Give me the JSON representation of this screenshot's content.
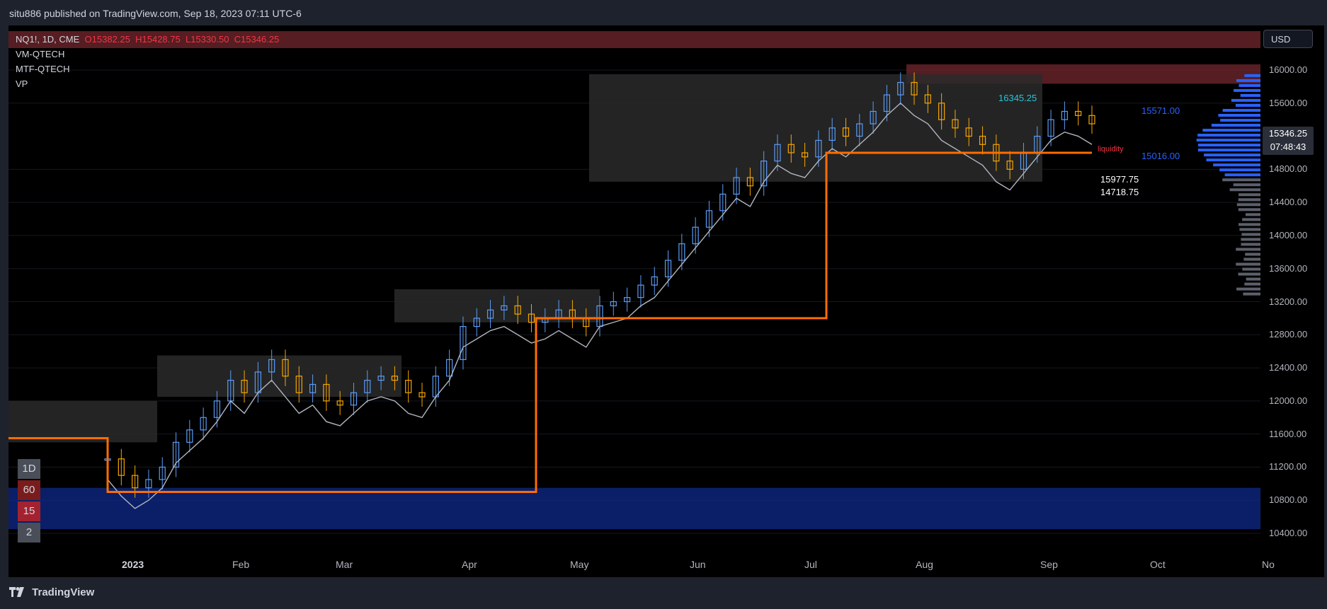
{
  "header": {
    "published": "situ886 published on TradingView.com, Sep 18, 2023 07:11 UTC-6"
  },
  "legend": {
    "symbol": "NQ1!, 1D, CME",
    "open": "O15382.25",
    "high": "H15428.75",
    "low": "L15330.50",
    "close": "C15346.25",
    "indicators": [
      "VM-QTECH",
      "MTF-QTECH",
      "VP"
    ]
  },
  "currency": "USD",
  "last_price": {
    "value": "15346.25",
    "countdown": "07:48:43"
  },
  "timeframes": [
    {
      "label": "1D",
      "color": "#4a4e58"
    },
    {
      "label": "60",
      "color": "#7a1c1c"
    },
    {
      "label": "15",
      "color": "#a3222f"
    },
    {
      "label": "2",
      "color": "#4a4e58"
    }
  ],
  "annotations": {
    "level_1": "16345.25",
    "level_2": "15571.00",
    "level_3": "15016.00",
    "liquidity": "liquidity",
    "level_4": "15977.75",
    "level_5": "14718.75"
  },
  "footer": {
    "brand": "TradingView"
  },
  "colors": {
    "up": "#5b9cf6",
    "down": "#f7a600",
    "poc_line": "#ff6d00",
    "vwap": "#b2b5be",
    "fill": "#0d1a7a",
    "resistance_zone": "#7a2a30",
    "buy_marker": "#00e676",
    "sell_marker": "#ff1744"
  },
  "chart_data": {
    "type": "candlestick",
    "symbol": "NQ1!",
    "interval": "1D",
    "y_axis": {
      "ticks": [
        16000,
        15600,
        14800,
        14400,
        14000,
        13600,
        13200,
        12800,
        12400,
        12000,
        11600,
        11200,
        10800,
        10400
      ],
      "tick_labels": [
        "16000.00",
        "15600.00",
        "14800.00",
        "14400.00",
        "14000.00",
        "13600.00",
        "13200.00",
        "12800.00",
        "12400.00",
        "12000.00",
        "11600.00",
        "11200.00",
        "10800.00",
        "10400.00"
      ],
      "range": [
        10000,
        16400
      ]
    },
    "x_axis": {
      "labels": [
        "2023",
        "Feb",
        "Mar",
        "Apr",
        "May",
        "Jun",
        "Jul",
        "Aug",
        "Sep",
        "Oct",
        "No"
      ]
    },
    "close_approx": [
      11300,
      11100,
      10950,
      11050,
      11200,
      11500,
      11650,
      11800,
      12000,
      12250,
      12100,
      12350,
      12500,
      12300,
      12100,
      12200,
      12000,
      11950,
      12100,
      12250,
      12300,
      12250,
      12100,
      12050,
      12300,
      12500,
      12900,
      13000,
      13100,
      13150,
      13050,
      12950,
      13000,
      13100,
      13000,
      12900,
      13150,
      13200,
      13250,
      13400,
      13500,
      13700,
      13900,
      14100,
      14300,
      14500,
      14700,
      14600,
      14900,
      15100,
      15000,
      14950,
      15150,
      15300,
      15200,
      15350,
      15500,
      15700,
      15850,
      15700,
      15600,
      15400,
      15300,
      15200,
      15100,
      14900,
      14800,
      15000,
      15200,
      15400,
      15500,
      15450,
      15350
    ],
    "volume_profile_poc": 15016.0,
    "resistance_zone": [
      15800,
      16000
    ],
    "annotations": [
      16345.25,
      15571.0,
      15016.0,
      15977.75,
      14718.75
    ]
  }
}
